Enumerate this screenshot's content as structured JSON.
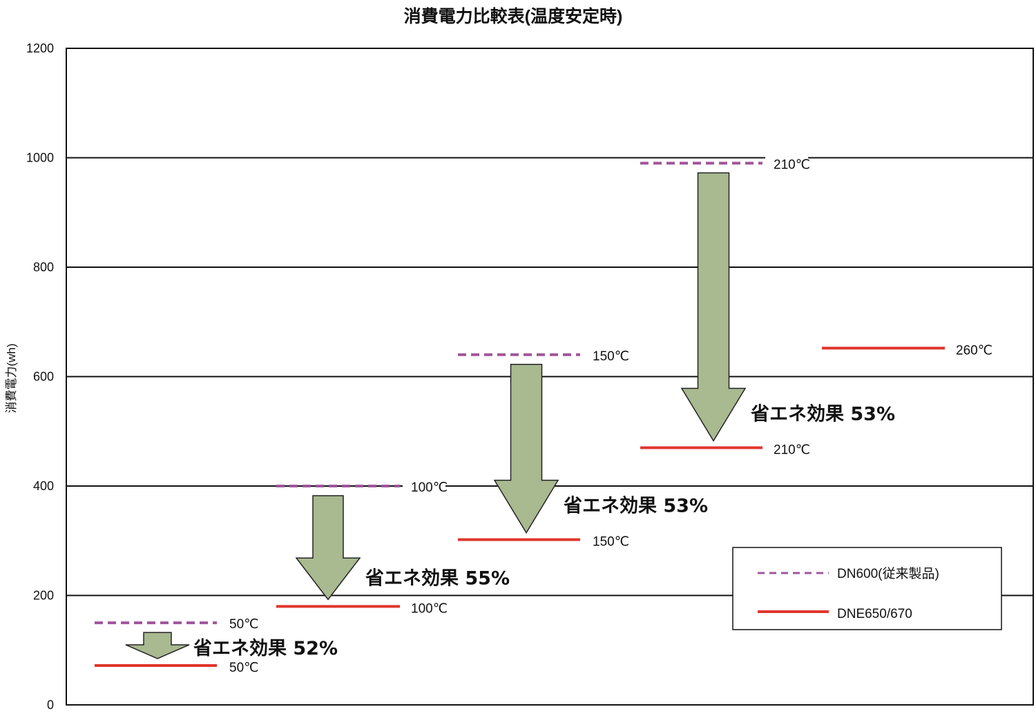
{
  "chart_data": {
    "type": "line",
    "title": "消費電力比較表(温度安定時)",
    "ylabel": "消費電力(wh)",
    "xlabel": "",
    "ylim": [
      0,
      1200
    ],
    "yticks": [
      0,
      200,
      400,
      600,
      800,
      1000,
      1200
    ],
    "grid": true,
    "legend_position": "bottom-right",
    "colors": {
      "DN600": "#a0559b",
      "DNE650": "#e0362c",
      "arrow_fill": "#a9b990",
      "arrow_stroke": "#222222"
    },
    "series": [
      {
        "name": "DN600(従来製品)",
        "style": "dashed",
        "points": [
          {
            "label": "50℃",
            "value": 150
          },
          {
            "label": "100℃",
            "value": 400
          },
          {
            "label": "150℃",
            "value": 640
          },
          {
            "label": "210℃",
            "value": 990
          }
        ]
      },
      {
        "name": "DNE650/670",
        "style": "solid",
        "points": [
          {
            "label": "50℃",
            "value": 72
          },
          {
            "label": "100℃",
            "value": 180
          },
          {
            "label": "150℃",
            "value": 302
          },
          {
            "label": "210℃",
            "value": 470
          },
          {
            "label": "260℃",
            "value": 652
          }
        ]
      }
    ],
    "annotations": [
      "省エネ効果 52%",
      "省エネ効果 55%",
      "省エネ効果 53%",
      "省エネ効果 53%"
    ]
  }
}
